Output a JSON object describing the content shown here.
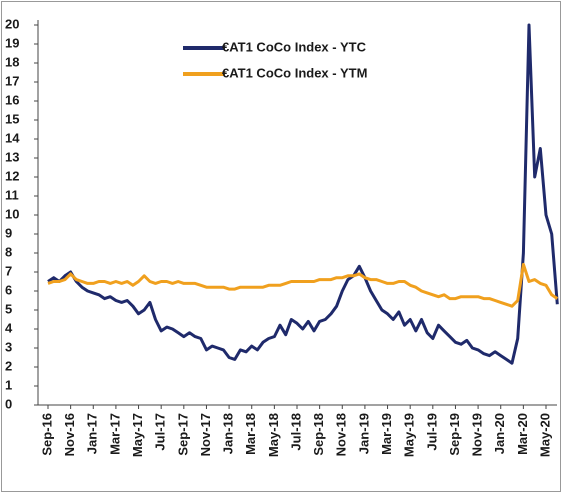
{
  "chart_data": {
    "type": "line",
    "categories": [
      "Sep-16",
      null,
      null,
      null,
      "Nov-16",
      null,
      null,
      null,
      "Jan-17",
      null,
      null,
      null,
      "Mar-17",
      null,
      null,
      null,
      "May-17",
      null,
      null,
      null,
      "Jul-17",
      null,
      null,
      null,
      "Sep-17",
      null,
      null,
      null,
      "Nov-17",
      null,
      null,
      null,
      "Jan-18",
      null,
      null,
      null,
      "Mar-18",
      null,
      null,
      null,
      "May-18",
      null,
      null,
      null,
      "Jul-18",
      null,
      null,
      null,
      "Sep-18",
      null,
      null,
      null,
      "Nov-18",
      null,
      null,
      null,
      "Jan-19",
      null,
      null,
      null,
      "Mar-19",
      null,
      null,
      null,
      "May-19",
      null,
      null,
      null,
      "Jul-19",
      null,
      null,
      null,
      "Sep-19",
      null,
      null,
      null,
      "Nov-19",
      null,
      null,
      null,
      "Jan-20",
      null,
      null,
      null,
      "Mar-20",
      null,
      null,
      null,
      "May-20",
      null,
      null
    ],
    "series": [
      {
        "name": "€AT1 CoCo Index - YTC",
        "color": "#1f2a6b",
        "values": [
          6.5,
          6.7,
          6.5,
          6.8,
          7.0,
          6.5,
          6.2,
          6.0,
          5.9,
          5.8,
          5.6,
          5.7,
          5.5,
          5.4,
          5.5,
          5.2,
          4.8,
          5.0,
          5.4,
          4.5,
          3.9,
          4.1,
          4.0,
          3.8,
          3.6,
          3.8,
          3.6,
          3.5,
          2.9,
          3.1,
          3.0,
          2.9,
          2.5,
          2.4,
          2.9,
          2.8,
          3.1,
          2.9,
          3.3,
          3.5,
          3.6,
          4.2,
          3.7,
          4.5,
          4.3,
          4.0,
          4.4,
          3.9,
          4.4,
          4.5,
          4.8,
          5.2,
          6.0,
          6.6,
          6.8,
          7.3,
          6.7,
          6.0,
          5.5,
          5.0,
          4.8,
          4.5,
          4.9,
          4.2,
          4.5,
          3.9,
          4.5,
          3.8,
          3.5,
          4.2,
          3.9,
          3.6,
          3.3,
          3.2,
          3.4,
          3.0,
          2.9,
          2.7,
          2.6,
          2.8,
          2.6,
          2.4,
          2.2,
          3.5,
          8.0,
          20.0,
          12.0,
          13.5,
          10.0,
          9.0,
          5.3
        ]
      },
      {
        "name": "€AT1 CoCo Index - YTM",
        "color": "#f0a01e",
        "values": [
          6.4,
          6.5,
          6.5,
          6.6,
          6.9,
          6.6,
          6.5,
          6.4,
          6.4,
          6.5,
          6.5,
          6.4,
          6.5,
          6.4,
          6.5,
          6.3,
          6.5,
          6.8,
          6.5,
          6.4,
          6.5,
          6.5,
          6.4,
          6.5,
          6.4,
          6.4,
          6.4,
          6.3,
          6.2,
          6.2,
          6.2,
          6.2,
          6.1,
          6.1,
          6.2,
          6.2,
          6.2,
          6.2,
          6.2,
          6.3,
          6.3,
          6.3,
          6.4,
          6.5,
          6.5,
          6.5,
          6.5,
          6.5,
          6.6,
          6.6,
          6.6,
          6.7,
          6.7,
          6.8,
          6.8,
          6.9,
          6.7,
          6.6,
          6.6,
          6.5,
          6.4,
          6.4,
          6.5,
          6.5,
          6.3,
          6.2,
          6.0,
          5.9,
          5.8,
          5.7,
          5.8,
          5.6,
          5.6,
          5.7,
          5.7,
          5.7,
          5.7,
          5.6,
          5.6,
          5.5,
          5.4,
          5.3,
          5.2,
          5.5,
          7.4,
          6.5,
          6.6,
          6.4,
          6.3,
          5.8,
          5.6
        ]
      }
    ],
    "ylim": [
      0,
      20
    ],
    "yticks": [
      0,
      1,
      2,
      3,
      4,
      5,
      6,
      7,
      8,
      9,
      10,
      11,
      12,
      13,
      14,
      15,
      16,
      17,
      18,
      19,
      20
    ],
    "grid": false,
    "legend": "top"
  }
}
